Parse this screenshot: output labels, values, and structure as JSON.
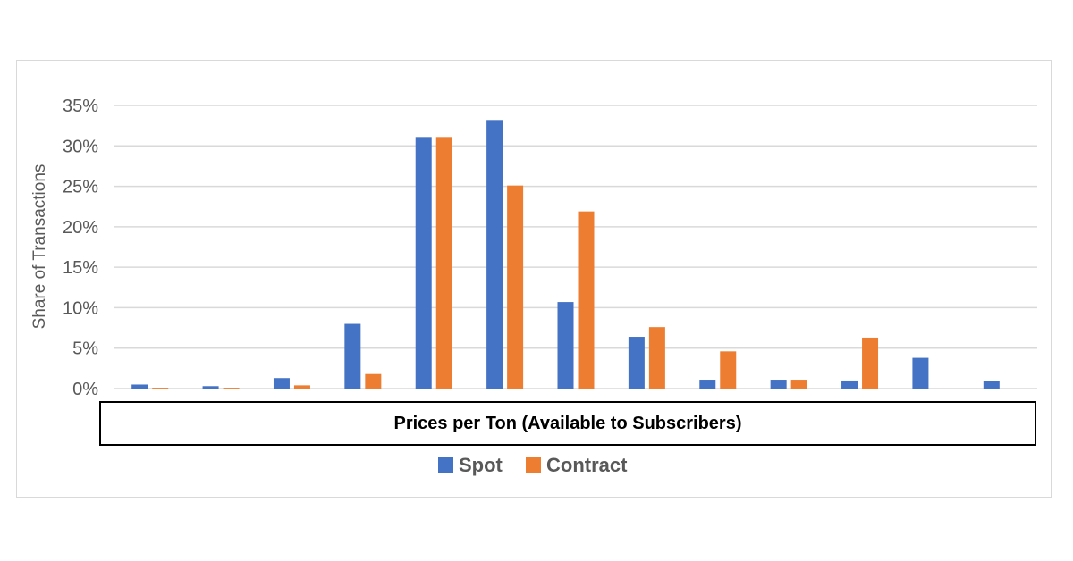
{
  "chart_data": {
    "type": "bar",
    "title": "",
    "xlabel": "Prices per Ton (Available to Subscribers)",
    "ylabel": "Share of Transactions",
    "ylim": [
      0,
      35
    ],
    "yticks": [
      "0%",
      "5%",
      "10%",
      "15%",
      "20%",
      "25%",
      "30%",
      "35%"
    ],
    "y_unit": "%",
    "grid": true,
    "legend_position": "bottom",
    "categories": [
      "",
      "",
      "",
      "",
      "",
      "",
      "",
      "",
      "",
      "",
      "",
      "",
      ""
    ],
    "series": [
      {
        "name": "Spot",
        "color": "#4472C4",
        "values": [
          0.5,
          0.3,
          1.3,
          8.0,
          31.1,
          33.2,
          10.7,
          6.4,
          1.1,
          1.1,
          1.0,
          3.8,
          0.9
        ]
      },
      {
        "name": "Contract",
        "color": "#ED7D31",
        "values": [
          0.1,
          0.1,
          0.4,
          1.8,
          31.1,
          25.1,
          21.9,
          7.6,
          4.6,
          1.1,
          6.3,
          0.0,
          0.0
        ]
      }
    ]
  }
}
